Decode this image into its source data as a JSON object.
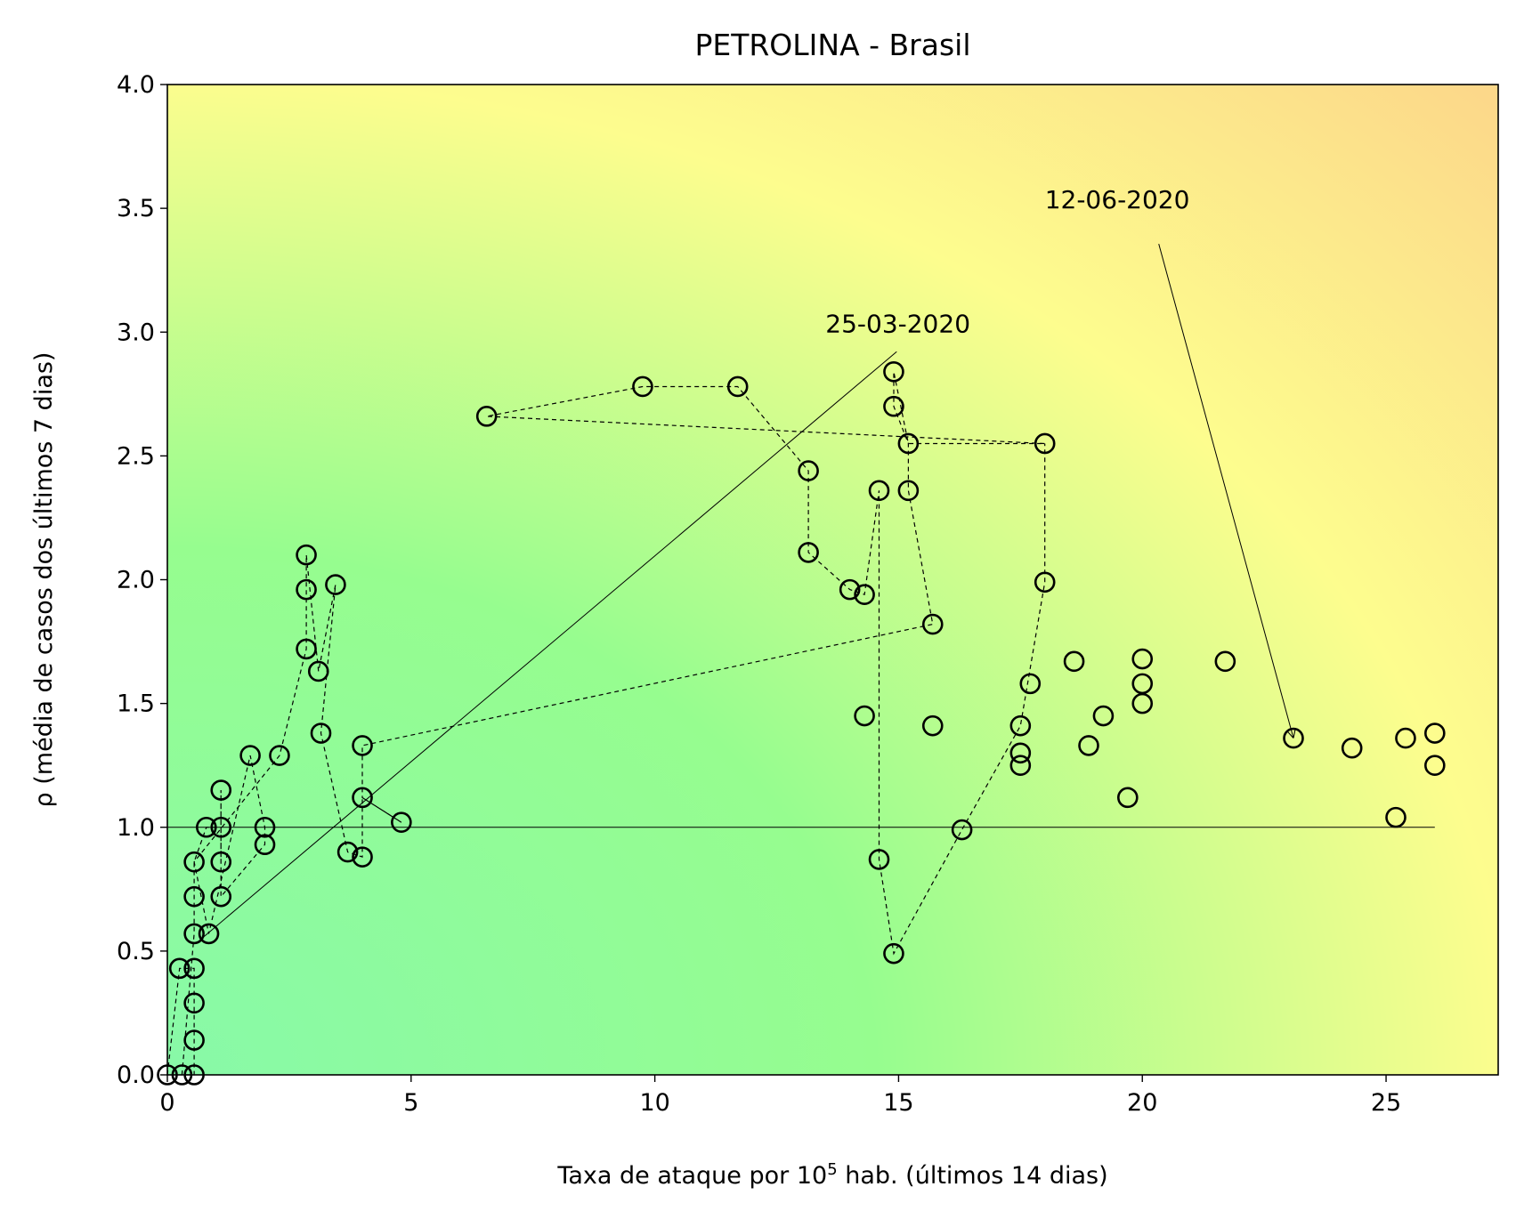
{
  "chart_data": {
    "type": "scatter",
    "title": "PETROLINA - Brasil",
    "xlabel_main": "Taxa de ataque por 10",
    "xlabel_sup": "5",
    "xlabel_tail": " hab. (últimos 14 dias)",
    "ylabel": "ρ (média de casos dos últimos 7 dias)",
    "xlim": [
      0,
      27.3
    ],
    "ylim": [
      0,
      4.0
    ],
    "xticks": [
      0,
      5,
      10,
      15,
      20,
      25
    ],
    "yticks": [
      "0.0",
      "0.5",
      "1.0",
      "1.5",
      "2.0",
      "2.5",
      "3.0",
      "3.5",
      "4.0"
    ],
    "reference_line": {
      "y": 1.0,
      "x": [
        0,
        26
      ]
    },
    "background_colors": {
      "low": "#88f9a8",
      "mid": "#96fd8f",
      "high": "#fdfd8e",
      "corner": "#fcd88a"
    },
    "annotations": [
      {
        "text": "25-03-2020",
        "text_pos": [
          13.5,
          3.0
        ],
        "target": [
          0.7,
          0.55
        ],
        "head": false
      },
      {
        "text": "12-06-2020",
        "text_pos": [
          18.0,
          3.5
        ],
        "target": [
          23.1,
          1.36
        ],
        "head": true
      }
    ],
    "series": [
      {
        "marker": "circle-open",
        "points": [
          [
            0.0,
            0.0
          ],
          [
            0.3,
            0.0
          ],
          [
            0.55,
            0.0
          ],
          [
            0.55,
            0.14
          ],
          [
            0.55,
            0.29
          ],
          [
            0.55,
            0.43
          ],
          [
            0.25,
            0.43
          ],
          [
            0.55,
            0.57
          ],
          [
            0.55,
            0.72
          ],
          [
            0.55,
            0.86
          ],
          [
            0.8,
            1.0
          ],
          [
            1.1,
            1.0
          ],
          [
            1.1,
            0.86
          ],
          [
            1.1,
            0.72
          ],
          [
            1.1,
            1.15
          ],
          [
            0.85,
            0.57
          ],
          [
            1.7,
            1.29
          ],
          [
            2.0,
            1.0
          ],
          [
            2.0,
            0.93
          ],
          [
            2.3,
            1.29
          ],
          [
            2.85,
            2.1
          ],
          [
            2.85,
            1.96
          ],
          [
            2.85,
            1.72
          ],
          [
            3.1,
            1.63
          ],
          [
            3.45,
            1.98
          ],
          [
            3.15,
            1.38
          ],
          [
            3.7,
            0.9
          ],
          [
            4.0,
            0.88
          ],
          [
            4.0,
            1.12
          ],
          [
            4.8,
            1.02
          ],
          [
            4.0,
            1.33
          ],
          [
            15.7,
            1.82
          ],
          [
            15.2,
            2.36
          ],
          [
            15.2,
            2.55
          ],
          [
            14.9,
            2.7
          ],
          [
            14.9,
            2.84
          ],
          [
            14.6,
            2.36
          ],
          [
            14.3,
            1.45
          ],
          [
            15.7,
            1.41
          ],
          [
            17.5,
            1.3
          ],
          [
            17.5,
            1.25
          ],
          [
            18.9,
            1.33
          ],
          [
            17.7,
            1.58
          ],
          [
            20.0,
            1.5
          ],
          [
            20.0,
            1.58
          ],
          [
            21.7,
            1.67
          ],
          [
            20.0,
            1.68
          ],
          [
            18.6,
            1.67
          ],
          [
            19.2,
            1.45
          ],
          [
            19.7,
            1.12
          ],
          [
            25.2,
            1.04
          ],
          [
            26.0,
            1.25
          ],
          [
            24.3,
            1.32
          ],
          [
            23.1,
            1.36
          ],
          [
            25.4,
            1.36
          ],
          [
            26.0,
            1.38
          ]
        ],
        "path_order": [
          [
            0.0,
            0.0
          ],
          [
            0.25,
            0.43
          ],
          [
            0.55,
            0.43
          ],
          [
            0.55,
            0.29
          ],
          [
            0.55,
            0.14
          ],
          [
            0.55,
            0.0
          ],
          [
            0.3,
            0.0
          ],
          [
            0.55,
            0.57
          ],
          [
            0.55,
            0.72
          ],
          [
            0.55,
            0.86
          ],
          [
            0.8,
            1.0
          ],
          [
            1.1,
            1.0
          ],
          [
            1.1,
            0.86
          ],
          [
            1.1,
            1.15
          ],
          [
            1.1,
            0.72
          ],
          [
            2.0,
            0.93
          ],
          [
            2.0,
            1.0
          ],
          [
            1.7,
            1.29
          ],
          [
            0.85,
            0.57
          ],
          [
            0.55,
            0.86
          ],
          [
            2.3,
            1.29
          ],
          [
            2.85,
            1.72
          ],
          [
            2.85,
            1.96
          ],
          [
            2.85,
            2.1
          ],
          [
            3.1,
            1.63
          ],
          [
            3.45,
            1.98
          ],
          [
            3.15,
            1.38
          ],
          [
            3.7,
            0.9
          ],
          [
            4.0,
            0.88
          ],
          [
            4.0,
            1.12
          ],
          [
            4.8,
            1.02
          ],
          [
            4.0,
            1.12
          ],
          [
            4.0,
            1.33
          ],
          [
            15.7,
            1.82
          ],
          [
            15.2,
            2.36
          ],
          [
            15.2,
            2.55
          ],
          [
            14.9,
            2.7
          ],
          [
            14.9,
            2.84
          ],
          [
            15.2,
            2.55
          ],
          [
            18.0,
            2.55
          ],
          [
            6.55,
            2.66
          ],
          [
            9.75,
            2.78
          ],
          [
            11.7,
            2.78
          ],
          [
            13.15,
            2.44
          ],
          [
            13.15,
            2.11
          ],
          [
            14.0,
            1.96
          ],
          [
            14.3,
            1.94
          ],
          [
            14.6,
            2.36
          ],
          [
            14.6,
            0.87
          ],
          [
            14.9,
            0.49
          ],
          [
            16.3,
            0.99
          ],
          [
            17.5,
            1.41
          ],
          [
            18.0,
            1.99
          ],
          [
            18.0,
            2.55
          ]
        ]
      }
    ]
  }
}
